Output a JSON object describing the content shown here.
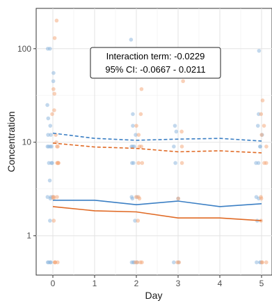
{
  "chart_data": {
    "type": "scatter",
    "xlabel": "Day",
    "ylabel": "Concentration",
    "y_scale": "log10",
    "ylim": [
      0.38,
      270
    ],
    "xlim": [
      -0.4,
      5.25
    ],
    "x_ticks": [
      0,
      1,
      2,
      3,
      4,
      5
    ],
    "y_ticks": [
      1,
      10,
      100
    ],
    "grid": true,
    "colors": {
      "blue": "#3b7fc4",
      "orange": "#e06a25",
      "blue_points": "#8fb8df",
      "orange_points": "#f4ab80"
    },
    "annotation": [
      "Interaction term: -0.0229",
      "95% CI: -0.0667 - 0.0211"
    ],
    "series": [
      {
        "color": "blue",
        "median_line": {
          "x": [
            0,
            1,
            2,
            3,
            4,
            5
          ],
          "y": [
            2.4,
            2.4,
            2.15,
            2.35,
            2.05,
            2.2
          ]
        },
        "mean_line": {
          "x": [
            0,
            1,
            2,
            3,
            4,
            5
          ],
          "y": [
            12.5,
            11,
            10.5,
            10.8,
            11,
            10.3
          ]
        },
        "points": [
          [
            0,
            0.52
          ],
          [
            0,
            0.52
          ],
          [
            0,
            0.52
          ],
          [
            0,
            0.52
          ],
          [
            0,
            1.45
          ],
          [
            0,
            2.5
          ],
          [
            0,
            2.6
          ],
          [
            0,
            2.6
          ],
          [
            0,
            2.6
          ],
          [
            0,
            3.9
          ],
          [
            0,
            6
          ],
          [
            0,
            6
          ],
          [
            0,
            6
          ],
          [
            0,
            9
          ],
          [
            0,
            9
          ],
          [
            0,
            9
          ],
          [
            0,
            9
          ],
          [
            0,
            12
          ],
          [
            0,
            12
          ],
          [
            0,
            15
          ],
          [
            0,
            18
          ],
          [
            0,
            25
          ],
          [
            0,
            45
          ],
          [
            0,
            55
          ],
          [
            0,
            100
          ],
          [
            0,
            100
          ],
          [
            2,
            0.52
          ],
          [
            2,
            0.52
          ],
          [
            2,
            0.52
          ],
          [
            2,
            0.52
          ],
          [
            2,
            1.45
          ],
          [
            2,
            2.5
          ],
          [
            2,
            2.6
          ],
          [
            2,
            2.6
          ],
          [
            2,
            6
          ],
          [
            2,
            6
          ],
          [
            2,
            9
          ],
          [
            2,
            9
          ],
          [
            2,
            9
          ],
          [
            2,
            12
          ],
          [
            2,
            15
          ],
          [
            2,
            20
          ],
          [
            2,
            125
          ],
          [
            3,
            0.52
          ],
          [
            3,
            0.52
          ],
          [
            3,
            2.5
          ],
          [
            3,
            6
          ],
          [
            3,
            9
          ],
          [
            3,
            13
          ],
          [
            3,
            15
          ],
          [
            5,
            0.52
          ],
          [
            5,
            0.52
          ],
          [
            5,
            0.52
          ],
          [
            5,
            1.45
          ],
          [
            5,
            2.5
          ],
          [
            5,
            2.6
          ],
          [
            5,
            6
          ],
          [
            5,
            6
          ],
          [
            5,
            9
          ],
          [
            5,
            9
          ],
          [
            5,
            12
          ],
          [
            5,
            15
          ],
          [
            5,
            20
          ],
          [
            5,
            95
          ]
        ]
      },
      {
        "color": "orange",
        "median_line": {
          "x": [
            0,
            1,
            2,
            3,
            4,
            5
          ],
          "y": [
            2.05,
            1.85,
            1.8,
            1.55,
            1.55,
            1.45
          ]
        },
        "mean_line": {
          "x": [
            0,
            1,
            2,
            3,
            4,
            5
          ],
          "y": [
            9.8,
            8.9,
            8.6,
            7.9,
            8.1,
            7.7
          ]
        },
        "points": [
          [
            0,
            0.52
          ],
          [
            0,
            0.52
          ],
          [
            0,
            0.52
          ],
          [
            0,
            0.52
          ],
          [
            0,
            1.45
          ],
          [
            0,
            2.5
          ],
          [
            0,
            2.6
          ],
          [
            0,
            2.6
          ],
          [
            0,
            2.6
          ],
          [
            0,
            6
          ],
          [
            0,
            6
          ],
          [
            0,
            6
          ],
          [
            0,
            6
          ],
          [
            0,
            9
          ],
          [
            0,
            9
          ],
          [
            0,
            10
          ],
          [
            0,
            12
          ],
          [
            0,
            20
          ],
          [
            0,
            22
          ],
          [
            0,
            33
          ],
          [
            0,
            37
          ],
          [
            0,
            130
          ],
          [
            0,
            200
          ],
          [
            2,
            0.52
          ],
          [
            2,
            0.52
          ],
          [
            2,
            0.52
          ],
          [
            2,
            0.52
          ],
          [
            2,
            1.45
          ],
          [
            2,
            2.5
          ],
          [
            2,
            2.6
          ],
          [
            2,
            2.6
          ],
          [
            2,
            6
          ],
          [
            2,
            6
          ],
          [
            2,
            9
          ],
          [
            2,
            9
          ],
          [
            2,
            12
          ],
          [
            2,
            15
          ],
          [
            2,
            20
          ],
          [
            2,
            37
          ],
          [
            3,
            0.52
          ],
          [
            3,
            0.52
          ],
          [
            3,
            2.5
          ],
          [
            3,
            6
          ],
          [
            3,
            9
          ],
          [
            3,
            13
          ],
          [
            3,
            45
          ],
          [
            5,
            0.52
          ],
          [
            5,
            0.52
          ],
          [
            5,
            0.52
          ],
          [
            5,
            1.45
          ],
          [
            5,
            2.5
          ],
          [
            5,
            2.6
          ],
          [
            5,
            6
          ],
          [
            5,
            6
          ],
          [
            5,
            9
          ],
          [
            5,
            12
          ],
          [
            5,
            15
          ],
          [
            5,
            20
          ],
          [
            5,
            28
          ]
        ]
      }
    ]
  }
}
